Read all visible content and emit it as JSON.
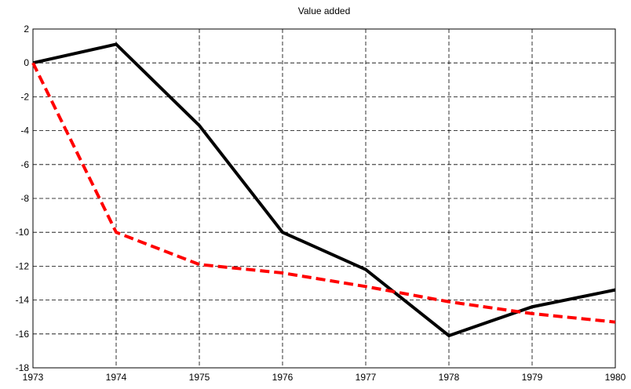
{
  "chart_data": {
    "type": "line",
    "title": "Value added",
    "x": [
      1973,
      1974,
      1975,
      1976,
      1977,
      1978,
      1979,
      1980
    ],
    "series": [
      {
        "color": "#000000",
        "dash": false,
        "values": [
          0,
          1.1,
          -3.7,
          -10,
          -12.2,
          -16.1,
          -14.4,
          -13.4
        ]
      },
      {
        "color": "#ff0000",
        "dash": true,
        "values": [
          0,
          -10,
          -11.9,
          -12.4,
          -13.2,
          -14.1,
          -14.8,
          -15.3
        ]
      }
    ],
    "xlim": [
      1973,
      1980
    ],
    "xticks": [
      1973,
      1974,
      1975,
      1976,
      1977,
      1978,
      1979,
      1980
    ],
    "ylim": [
      -18,
      2
    ],
    "yticks": [
      -18,
      -16,
      -14,
      -12,
      -10,
      -8,
      -6,
      -4,
      -2,
      0,
      2
    ],
    "grid": true
  }
}
